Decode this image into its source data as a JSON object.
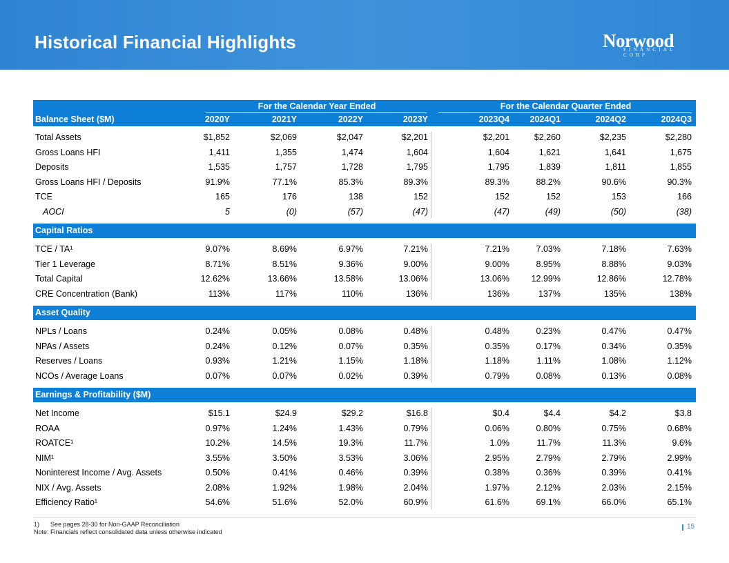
{
  "page": {
    "title": "Historical Financial Highlights",
    "logo_main": "Norwood",
    "logo_sub": "FINANCIAL CORP",
    "page_number": "15",
    "footnote_num": "1)",
    "footnote_text": "See pages 28-30 for Non-GAAP Reconciliation",
    "note": "Note: Financials reflect consolidated data unless otherwise indicated"
  },
  "colors": {
    "header": "#2f84d3",
    "section_band": "#0d7fd6",
    "text_white": "#ffffff"
  },
  "groups": {
    "annual": "For the Calendar Year Ended",
    "quarterly": "For the Calendar Quarter Ended"
  },
  "columns": [
    "2020Y",
    "2021Y",
    "2022Y",
    "2023Y",
    "2023Q4",
    "2024Q1",
    "2024Q2",
    "2024Q3"
  ],
  "sections": [
    {
      "title": "Balance Sheet ($M)",
      "rows": [
        {
          "label": "Total Assets",
          "values": [
            "$1,852",
            "$2,069",
            "$2,047",
            "$2,201",
            "$2,201",
            "$2,260",
            "$2,235",
            "$2,280"
          ]
        },
        {
          "label": "Gross Loans HFI",
          "values": [
            "1,411",
            "1,355",
            "1,474",
            "1,604",
            "1,604",
            "1,621",
            "1,641",
            "1,675"
          ]
        },
        {
          "label": "Deposits",
          "values": [
            "1,535",
            "1,757",
            "1,728",
            "1,795",
            "1,795",
            "1,839",
            "1,811",
            "1,855"
          ]
        },
        {
          "label": "Gross Loans HFI / Deposits",
          "values": [
            "91.9%",
            "77.1%",
            "85.3%",
            "89.3%",
            "89.3%",
            "88.2%",
            "90.6%",
            "90.3%"
          ]
        },
        {
          "label": "TCE",
          "values": [
            "165",
            "176",
            "138",
            "152",
            "152",
            "152",
            "153",
            "166"
          ]
        },
        {
          "label": "AOCI",
          "italic": true,
          "values": [
            "5",
            "(0)",
            "(57)",
            "(47)",
            "(47)",
            "(49)",
            "(50)",
            "(38)"
          ]
        }
      ]
    },
    {
      "title": "Capital Ratios",
      "rows": [
        {
          "label": "TCE / TA¹",
          "values": [
            "9.07%",
            "8.69%",
            "6.97%",
            "7.21%",
            "7.21%",
            "7.03%",
            "7.18%",
            "7.63%"
          ]
        },
        {
          "label": "Tier 1 Leverage",
          "values": [
            "8.71%",
            "8.51%",
            "9.36%",
            "9.00%",
            "9.00%",
            "8.95%",
            "8.88%",
            "9.03%"
          ]
        },
        {
          "label": "Total Capital",
          "values": [
            "12.62%",
            "13.66%",
            "13.58%",
            "13.06%",
            "13.06%",
            "12.99%",
            "12.86%",
            "12.78%"
          ]
        },
        {
          "label": "CRE Concentration (Bank)",
          "values": [
            "113%",
            "117%",
            "110%",
            "136%",
            "136%",
            "137%",
            "135%",
            "138%"
          ]
        }
      ]
    },
    {
      "title": "Asset Quality",
      "rows": [
        {
          "label": "NPLs / Loans",
          "values": [
            "0.24%",
            "0.05%",
            "0.08%",
            "0.48%",
            "0.48%",
            "0.23%",
            "0.47%",
            "0.47%"
          ]
        },
        {
          "label": "NPAs / Assets",
          "values": [
            "0.24%",
            "0.12%",
            "0.07%",
            "0.35%",
            "0.35%",
            "0.17%",
            "0.34%",
            "0.35%"
          ]
        },
        {
          "label": "Reserves / Loans",
          "values": [
            "0.93%",
            "1.21%",
            "1.15%",
            "1.18%",
            "1.18%",
            "1.11%",
            "1.08%",
            "1.12%"
          ]
        },
        {
          "label": "NCOs / Average Loans",
          "values": [
            "0.07%",
            "0.07%",
            "0.02%",
            "0.39%",
            "0.79%",
            "0.08%",
            "0.13%",
            "0.08%"
          ]
        }
      ]
    },
    {
      "title": "Earnings & Profitability ($M)",
      "rows": [
        {
          "label": "Net Income",
          "values": [
            "$15.1",
            "$24.9",
            "$29.2",
            "$16.8",
            "$0.4",
            "$4.4",
            "$4.2",
            "$3.8"
          ]
        },
        {
          "label": "ROAA",
          "values": [
            "0.97%",
            "1.24%",
            "1.43%",
            "0.79%",
            "0.06%",
            "0.80%",
            "0.75%",
            "0.68%"
          ]
        },
        {
          "label": "ROATCE¹",
          "values": [
            "10.2%",
            "14.5%",
            "19.3%",
            "11.7%",
            "1.0%",
            "11.7%",
            "11.3%",
            "9.6%"
          ]
        },
        {
          "label": "NIM¹",
          "values": [
            "3.55%",
            "3.50%",
            "3.53%",
            "3.06%",
            "2.95%",
            "2.79%",
            "2.79%",
            "2.99%"
          ]
        },
        {
          "label": "Noninterest Income / Avg. Assets",
          "values": [
            "0.50%",
            "0.41%",
            "0.46%",
            "0.39%",
            "0.38%",
            "0.36%",
            "0.39%",
            "0.41%"
          ]
        },
        {
          "label": "NIX / Avg. Assets",
          "values": [
            "2.08%",
            "1.92%",
            "1.98%",
            "2.04%",
            "1.97%",
            "2.12%",
            "2.03%",
            "2.15%"
          ]
        },
        {
          "label": "Efficiency Ratio¹",
          "values": [
            "54.6%",
            "51.6%",
            "52.0%",
            "60.9%",
            "61.6%",
            "69.1%",
            "66.0%",
            "65.1%"
          ]
        }
      ]
    }
  ]
}
